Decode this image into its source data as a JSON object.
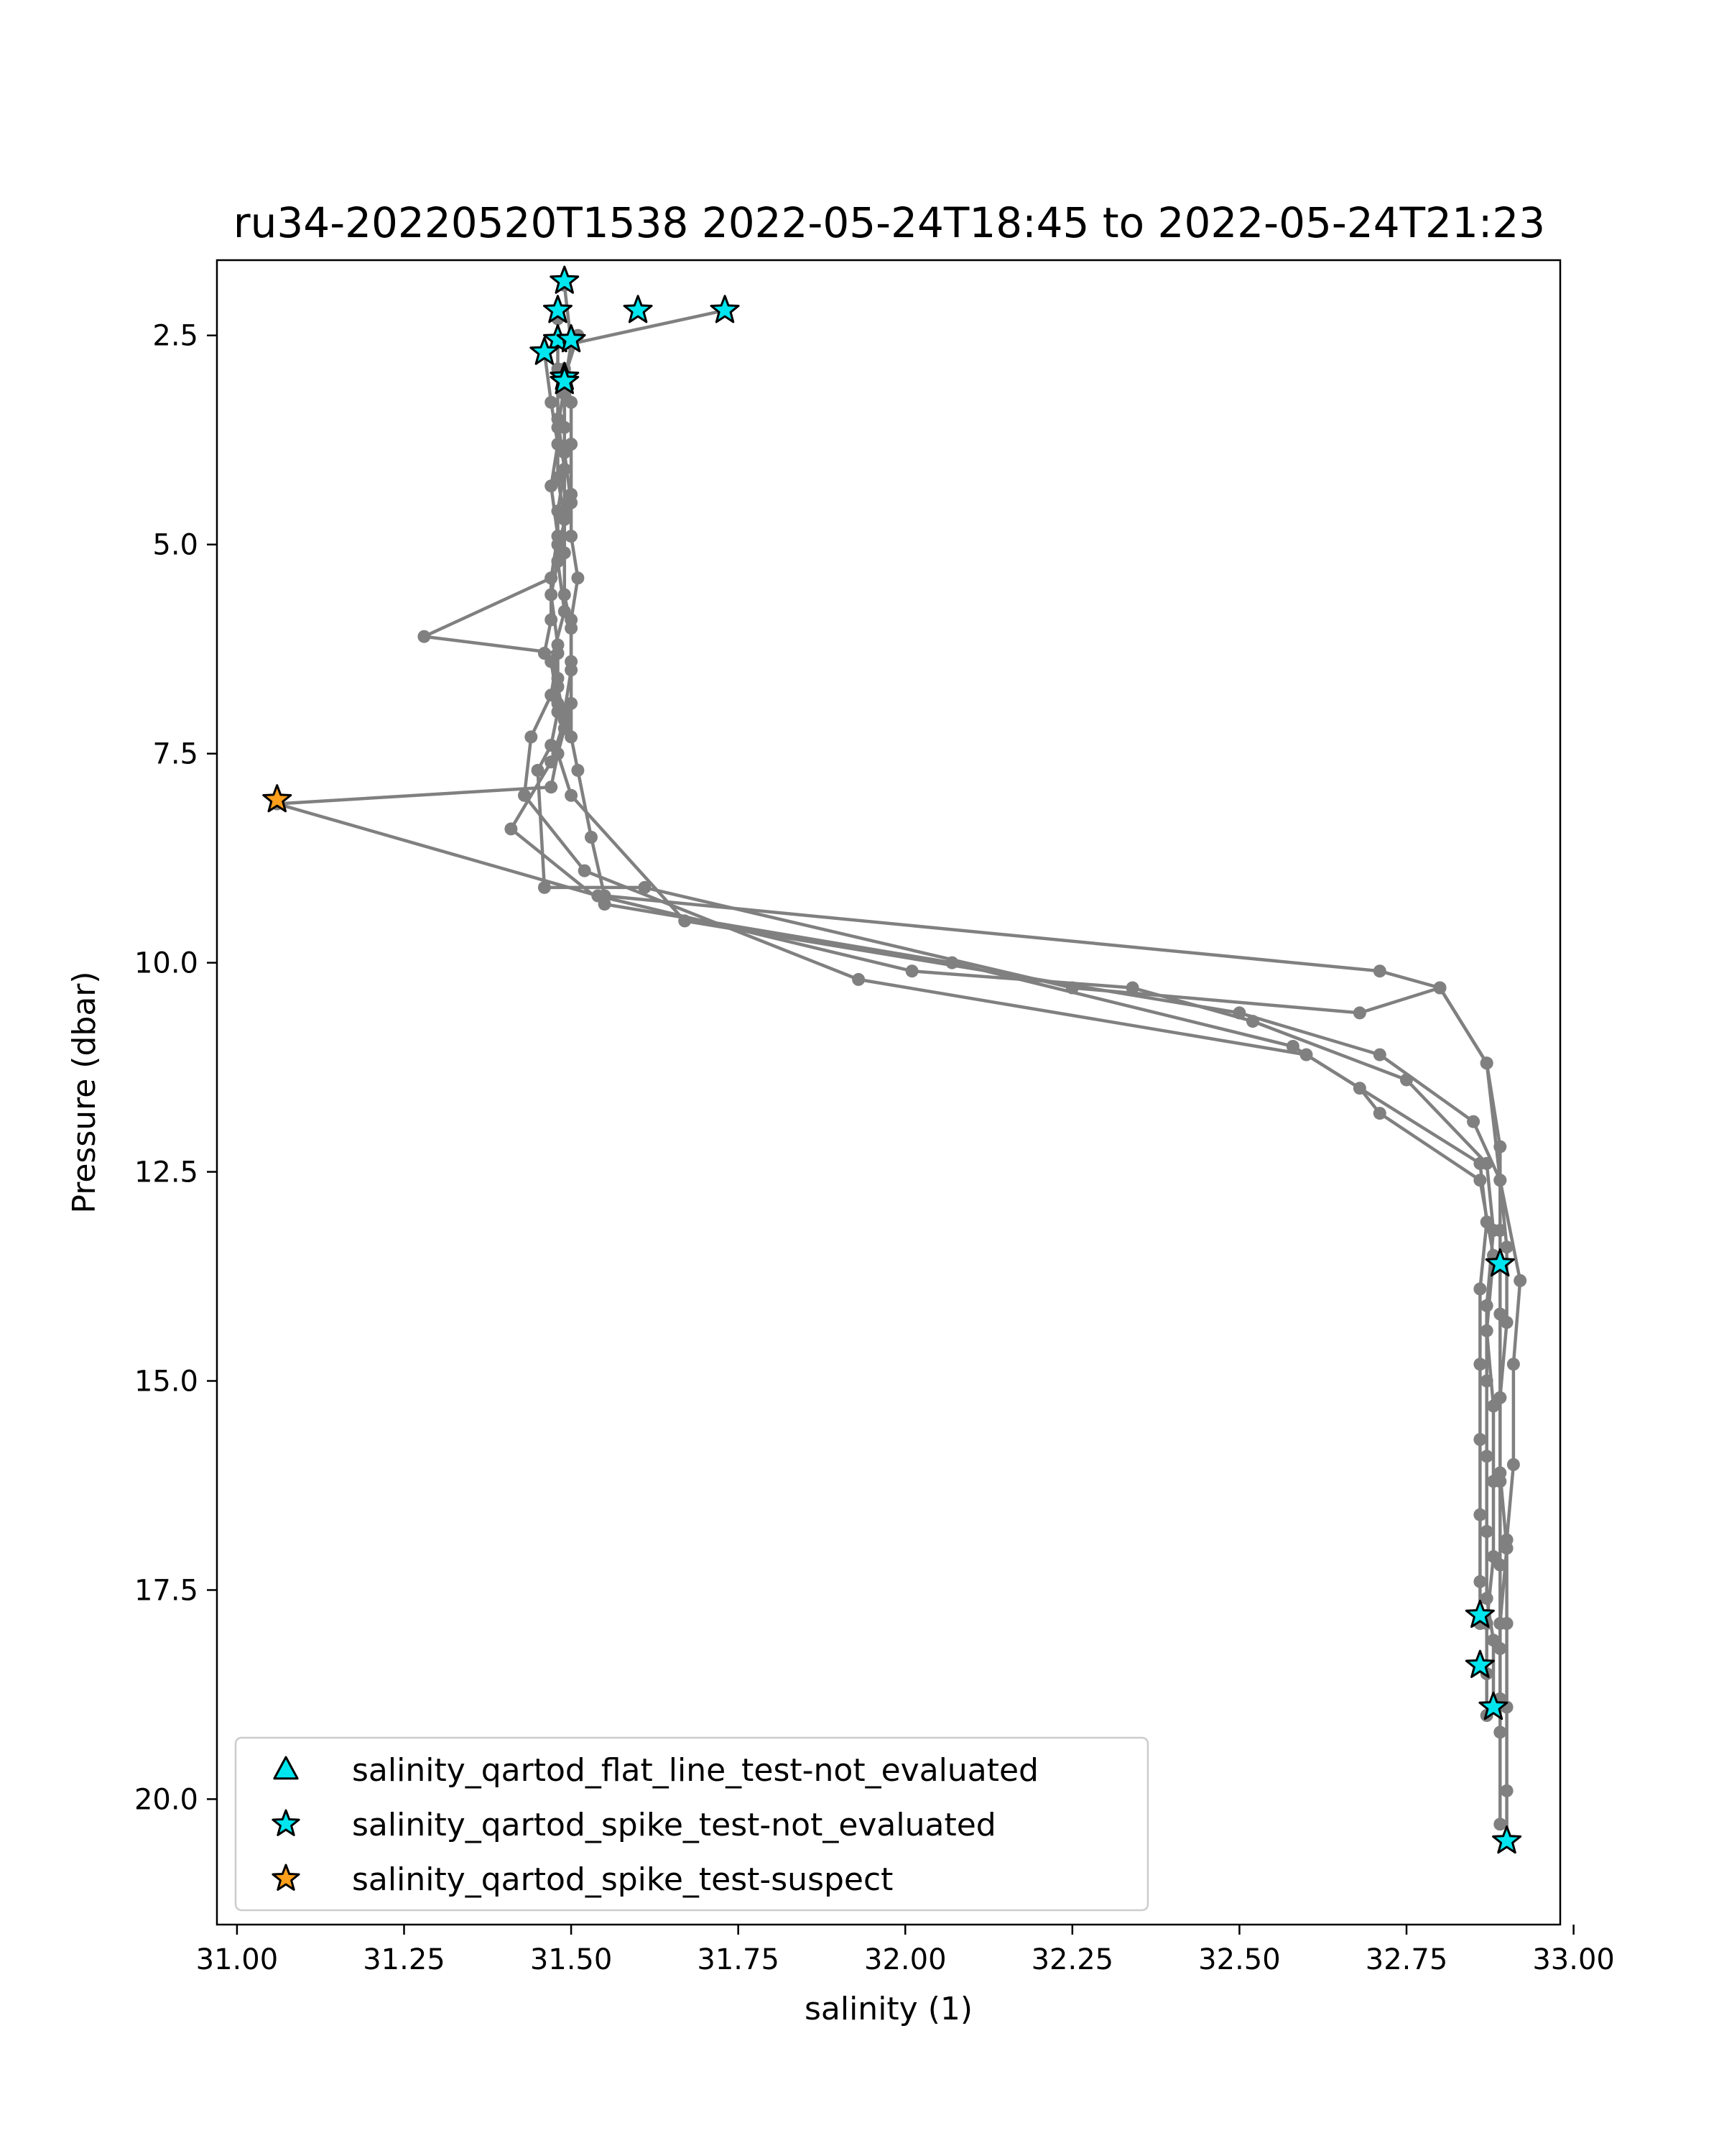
{
  "chart_data": {
    "type": "scatter",
    "title": "ru34-20220520T1538 2022-05-24T18:45 to 2022-05-24T21:23",
    "xlabel": "salinity (1)",
    "ylabel": "Pressure (dbar)",
    "xlim": [
      30.97,
      32.98
    ],
    "ylim": [
      21.5,
      1.6
    ],
    "y_inverted": true,
    "grid": false,
    "legend_position": "lower-left",
    "xticks": [
      "31.00",
      "31.25",
      "31.50",
      "31.75",
      "32.00",
      "32.25",
      "32.50",
      "32.75",
      "33.00"
    ],
    "yticks": [
      "2.5",
      "5.0",
      "7.5",
      "10.0",
      "12.5",
      "15.0",
      "17.5",
      "20.0"
    ],
    "profile_color": "#808080",
    "profiles": [
      {
        "salinity": [
          31.73,
          31.5,
          31.49,
          31.48,
          31.48,
          31.49,
          31.48,
          31.49,
          31.47,
          31.48,
          31.49,
          31.48,
          31.47,
          31.06,
          31.54,
          32.01,
          32.34,
          32.52,
          32.75,
          32.87,
          32.88,
          32.87,
          32.87,
          32.87,
          32.87,
          32.87,
          32.88,
          32.88
        ],
        "pressure": [
          2.2,
          2.6,
          3.1,
          3.6,
          4.2,
          4.7,
          5.2,
          5.8,
          6.4,
          6.9,
          7.2,
          7.5,
          7.9,
          8.1,
          9.2,
          10.1,
          10.3,
          10.7,
          11.4,
          12.4,
          13.2,
          14.1,
          15.0,
          15.9,
          16.8,
          17.6,
          18.1,
          18.9
        ]
      },
      {
        "salinity": [
          31.49,
          31.5,
          31.49,
          31.49,
          31.5,
          31.48,
          31.47,
          31.28,
          31.48,
          31.47,
          31.44,
          31.43,
          31.52,
          31.93,
          32.6,
          32.86,
          32.87,
          32.86,
          32.86,
          32.86,
          32.86,
          32.86,
          32.86
        ],
        "pressure": [
          1.9,
          2.6,
          3.2,
          3.9,
          4.5,
          5.0,
          5.4,
          6.1,
          6.3,
          6.8,
          7.3,
          8.0,
          8.9,
          10.2,
          11.1,
          12.4,
          13.1,
          13.9,
          14.8,
          15.7,
          16.6,
          17.4,
          17.9
        ]
      },
      {
        "salinity": [
          31.48,
          31.48,
          31.48,
          31.49,
          31.48,
          31.48,
          31.47,
          31.48,
          31.48,
          31.49,
          31.47,
          31.41,
          31.55,
          32.07,
          32.58,
          32.68,
          32.71,
          32.86,
          32.88,
          32.87,
          32.88,
          32.88,
          32.88,
          32.87,
          32.87,
          32.87
        ],
        "pressure": [
          2.3,
          2.9,
          3.5,
          4.1,
          4.6,
          5.2,
          5.6,
          6.2,
          6.7,
          7.1,
          7.6,
          8.4,
          9.3,
          10.0,
          11.0,
          11.5,
          11.8,
          12.6,
          13.5,
          14.4,
          15.3,
          16.2,
          17.1,
          17.9,
          18.5,
          19.0
        ]
      },
      {
        "salinity": [
          31.46,
          31.47,
          31.48,
          31.47,
          31.48,
          31.47,
          31.47,
          31.46,
          31.48,
          31.48,
          31.47,
          31.45,
          31.46,
          31.61,
          32.25,
          32.68,
          32.8,
          32.87,
          32.89,
          32.89,
          32.89,
          32.89,
          32.89,
          32.89,
          32.89,
          32.89,
          32.89
        ],
        "pressure": [
          2.7,
          3.3,
          3.8,
          4.3,
          4.9,
          5.4,
          5.9,
          6.3,
          6.6,
          7.0,
          7.4,
          7.7,
          9.1,
          9.1,
          10.3,
          10.6,
          10.3,
          11.2,
          12.2,
          13.2,
          14.2,
          15.2,
          16.2,
          17.2,
          18.2,
          19.2,
          20.3
        ]
      },
      {
        "salinity": [
          31.51,
          31.49,
          31.49,
          31.49,
          31.49,
          31.49,
          31.49,
          31.5,
          31.5,
          31.49,
          31.48,
          31.5,
          31.67,
          32.5,
          32.71,
          32.85,
          32.89,
          32.9,
          32.9,
          32.89,
          32.89,
          32.9,
          32.89,
          32.89
        ],
        "pressure": [
          2.5,
          3.0,
          3.6,
          4.1,
          4.6,
          5.1,
          5.6,
          6.0,
          6.5,
          7.0,
          7.5,
          8.0,
          9.5,
          10.6,
          11.1,
          11.9,
          12.6,
          13.4,
          14.3,
          15.2,
          16.1,
          17.0,
          17.9,
          18.8
        ]
      },
      {
        "salinity": [
          31.49,
          31.5,
          31.5,
          31.5,
          31.5,
          31.51,
          31.5,
          31.5,
          31.5,
          31.5,
          31.51,
          31.53,
          31.55,
          32.71,
          32.8,
          32.87,
          32.89,
          32.92,
          32.91,
          32.91,
          32.9,
          32.9,
          32.9,
          32.9,
          32.9
        ],
        "pressure": [
          2.9,
          3.3,
          3.8,
          4.4,
          4.9,
          5.4,
          5.9,
          6.4,
          6.9,
          7.3,
          7.7,
          8.5,
          9.2,
          10.1,
          10.3,
          11.2,
          12.6,
          13.8,
          14.8,
          16.0,
          16.9,
          17.9,
          18.9,
          19.9,
          20.5
        ]
      }
    ],
    "flags": [
      {
        "test": "spike",
        "status": "not_evaluated",
        "marker": "star",
        "color": "#00e5ee",
        "points": [
          [
            31.49,
            1.85
          ],
          [
            31.48,
            2.2
          ],
          [
            31.6,
            2.2
          ],
          [
            31.73,
            2.2
          ],
          [
            31.48,
            2.55
          ],
          [
            31.5,
            2.55
          ],
          [
            31.46,
            2.7
          ],
          [
            31.49,
            3.0
          ],
          [
            31.49,
            3.05
          ],
          [
            32.89,
            13.6
          ],
          [
            32.86,
            17.8
          ],
          [
            32.86,
            18.4
          ],
          [
            32.88,
            18.9
          ],
          [
            32.9,
            20.5
          ]
        ]
      },
      {
        "test": "spike",
        "status": "suspect",
        "marker": "star",
        "color": "#ff9f1c",
        "points": [
          [
            31.06,
            8.05
          ]
        ]
      }
    ],
    "legend": [
      {
        "label": "salinity_qartod_flat_line_test-not_evaluated",
        "marker": "triangle",
        "color": "#00e5ee"
      },
      {
        "label": "salinity_qartod_spike_test-not_evaluated",
        "marker": "star",
        "color": "#00e5ee"
      },
      {
        "label": "salinity_qartod_spike_test-suspect",
        "marker": "star",
        "color": "#ff9f1c"
      }
    ]
  }
}
